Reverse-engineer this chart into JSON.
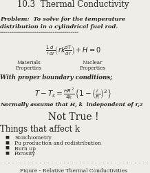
{
  "title": "10.3  Thermal Conductivity",
  "problem_label": "Problem:",
  "problem_line1": "  To solve for the temperature",
  "problem_line2": "distribution in a cylindrical fuel rod.",
  "separator": "========================================",
  "equation": "$\\frac{1}{r}\\frac{d}{dr}\\left(rk\\frac{dT}{dr}\\right) + H = 0$",
  "mat_prop_line1": "Materials",
  "mat_prop_line2": "Properties",
  "nuc_prop_line1": "Nuclear",
  "nuc_prop_line2": "Properties",
  "boundary_label": "With proper boundary conditions;",
  "bc_equation": "$T - T_s = \\frac{HR^2}{4k}\\left\\{1 - \\left(\\frac{r}{R}\\right)^2\\right\\}$",
  "assume_text": "Normally assume that H, k  independent of r,z",
  "not_true": "Not True !",
  "things_title": "Things that affect k",
  "bullets": [
    "Stoichiometry",
    "Pu production and redistribution",
    "Burn up",
    "Porosity"
  ],
  "figure_caption": "Figure - Relative Thermal Conductivities",
  "bg_color": "#f0ede8",
  "text_color": "#2a2520"
}
